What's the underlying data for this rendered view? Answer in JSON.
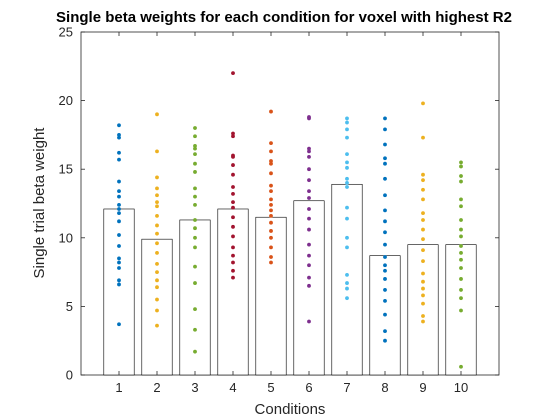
{
  "chart_data": {
    "type": "bar",
    "title": "Single beta weights for each condition for voxel with highest R2",
    "xlabel": "Conditions",
    "ylabel": "Single trial beta weight",
    "categories": [
      "1",
      "2",
      "3",
      "4",
      "5",
      "6",
      "7",
      "8",
      "9",
      "10"
    ],
    "values": [
      12.1,
      9.9,
      11.3,
      12.1,
      11.5,
      12.7,
      13.9,
      8.7,
      9.5,
      9.5
    ],
    "ylim": [
      0,
      25
    ],
    "xlim": [
      0,
      11
    ],
    "yticks": [
      "0",
      "5",
      "10",
      "15",
      "20",
      "25"
    ],
    "grid": false,
    "legend": "none",
    "bar_fill": "#ffffff",
    "bar_edge": "#000000",
    "colors": [
      "#0072BD",
      "#EDB120",
      "#77AC30",
      "#A2142F",
      "#D95319",
      "#7E2F8E",
      "#4DBEEE",
      "#0072BD",
      "#EDB120",
      "#77AC30"
    ],
    "trials": [
      [
        3.7,
        6.6,
        6.9,
        7.8,
        8.2,
        8.5,
        9.4,
        10.2,
        11.2,
        11.8,
        12.1,
        12.4,
        13.0,
        13.4,
        14.1,
        15.7,
        16.2,
        17.3,
        17.5,
        18.2
      ],
      [
        3.6,
        4.7,
        5.5,
        6.4,
        6.9,
        7.5,
        8.1,
        8.9,
        9.6,
        10.3,
        10.9,
        11.6,
        12.3,
        12.6,
        13.1,
        13.6,
        14.4,
        16.3,
        19.0
      ],
      [
        1.7,
        3.3,
        4.8,
        6.7,
        7.9,
        9.3,
        10.0,
        10.7,
        11.3,
        12.4,
        13.0,
        13.6,
        14.8,
        15.4,
        16.1,
        16.5,
        16.7,
        17.4,
        18.0
      ],
      [
        7.1,
        7.6,
        8.2,
        8.7,
        9.3,
        10.1,
        10.8,
        11.5,
        12.2,
        12.6,
        13.2,
        13.7,
        14.6,
        15.3,
        15.9,
        16.0,
        17.4,
        17.6,
        22.0
      ],
      [
        8.2,
        8.6,
        9.3,
        10.0,
        10.5,
        11.1,
        11.6,
        12.0,
        12.4,
        12.8,
        13.4,
        13.8,
        14.7,
        15.4,
        15.6,
        16.3,
        16.9,
        19.2
      ],
      [
        3.9,
        6.5,
        7.1,
        8.0,
        8.7,
        9.5,
        10.6,
        11.4,
        12.1,
        12.9,
        13.4,
        14.2,
        15.0,
        15.9,
        16.3,
        16.5,
        18.7,
        18.8
      ],
      [
        5.6,
        6.3,
        6.7,
        7.3,
        9.3,
        10.0,
        11.4,
        12.2,
        13.7,
        14.0,
        14.3,
        15.1,
        15.5,
        16.1,
        17.3,
        17.9,
        18.4,
        18.7
      ],
      [
        2.5,
        3.2,
        4.4,
        5.4,
        6.2,
        7.0,
        7.6,
        8.0,
        8.6,
        9.5,
        10.4,
        11.2,
        12.0,
        13.1,
        14.3,
        15.4,
        15.8,
        16.8,
        17.9,
        18.7
      ],
      [
        3.9,
        4.3,
        5.2,
        5.8,
        6.3,
        6.8,
        7.4,
        8.3,
        9.1,
        9.9,
        10.6,
        11.3,
        11.8,
        12.8,
        13.5,
        14.2,
        14.6,
        17.3,
        19.8
      ],
      [
        0.6,
        4.7,
        5.6,
        6.2,
        7.0,
        7.8,
        8.4,
        8.9,
        9.4,
        10.1,
        10.6,
        11.3,
        12.3,
        12.8,
        14.1,
        14.5,
        15.2,
        15.5
      ]
    ]
  }
}
